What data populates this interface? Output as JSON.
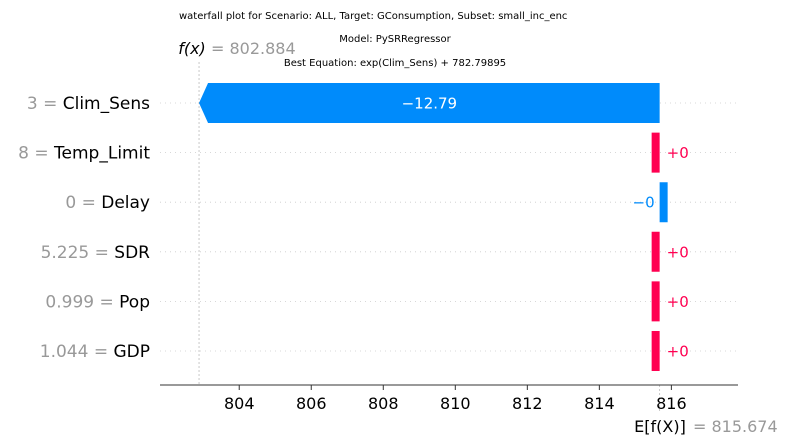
{
  "chart_data": {
    "type": "waterfall",
    "title_lines": [
      "waterfall plot for Scenario: ALL, Target: GConsumption, Subset: small_inc_enc",
      "Model: PySRRegressor",
      "Best Equation: exp(Clim_Sens) + 782.79895"
    ],
    "fx_symbol": "f(x)",
    "fx_value": "= 802.884",
    "fx": 802.884,
    "efx_symbol": "E[f(X)]",
    "efx_value": "= 815.674",
    "efx": 815.674,
    "x_ticks": [
      804,
      806,
      808,
      810,
      812,
      814,
      816
    ],
    "xlim": [
      801.8,
      817.85
    ],
    "features": [
      {
        "value": "3",
        "eq": "=",
        "name": "Clim_Sens",
        "contribution": -12.79,
        "label": "−12.79",
        "sign": "neg"
      },
      {
        "value": "8",
        "eq": "=",
        "name": "Temp_Limit",
        "contribution": 0.0,
        "label": "+0",
        "sign": "pos"
      },
      {
        "value": "0",
        "eq": "=",
        "name": "Delay",
        "contribution": 0.0,
        "label": "−0",
        "sign": "neg"
      },
      {
        "value": "5.225",
        "eq": "=",
        "name": "SDR",
        "contribution": 0.0,
        "label": "+0",
        "sign": "pos"
      },
      {
        "value": "0.999",
        "eq": "=",
        "name": "Pop",
        "contribution": 0.0,
        "label": "+0",
        "sign": "pos"
      },
      {
        "value": "1.044",
        "eq": "=",
        "name": "GDP",
        "contribution": 0.0,
        "label": "+0",
        "sign": "pos"
      }
    ],
    "colors": {
      "positive": "#ff0051",
      "negative": "#008bfb",
      "reference": "#999999"
    }
  }
}
